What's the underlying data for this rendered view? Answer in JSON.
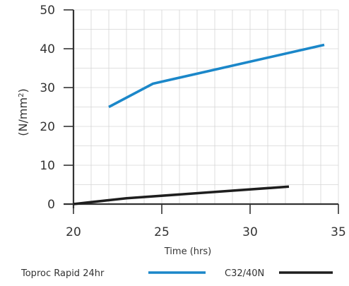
{
  "chart_data": {
    "type": "line",
    "title": "",
    "xlabel": "Time (hrs)",
    "ylabel": "(N/mm²)",
    "xlim": [
      20,
      35
    ],
    "ylim": [
      0,
      50
    ],
    "x_ticks": [
      20,
      25,
      30,
      35
    ],
    "y_ticks": [
      0,
      10,
      20,
      30,
      40,
      50
    ],
    "grid": true,
    "legend_position": "bottom",
    "series": [
      {
        "name": "Toproc Rapid 24hr",
        "color": "#1b87c9",
        "x": [
          22,
          24.5,
          34.2
        ],
        "y": [
          25,
          31,
          41
        ]
      },
      {
        "name": "C32/40N",
        "color": "#1e1e1e",
        "x": [
          20,
          23,
          32.2
        ],
        "y": [
          0,
          1.5,
          4.5
        ]
      }
    ]
  }
}
